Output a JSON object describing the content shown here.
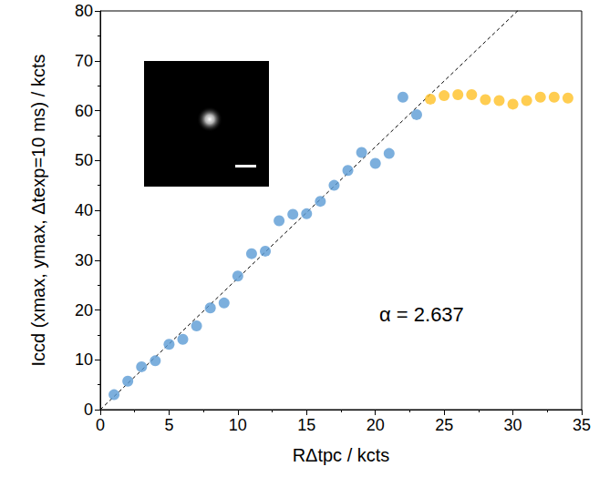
{
  "chart_data": {
    "type": "scatter",
    "x_label": "RΔtpc / kcts",
    "y_label": "Iccd (xmax, ymax, Δtexp=10 ms) / kcts",
    "xlim": [
      0,
      35
    ],
    "xticks": [
      0,
      5,
      10,
      15,
      20,
      25,
      30,
      35
    ],
    "ylim": [
      0,
      80
    ],
    "yticks": [
      0,
      10,
      20,
      30,
      40,
      50,
      60,
      70,
      80
    ],
    "grid": false,
    "marker": "circle",
    "series": [
      {
        "color": "#5B9BD5",
        "x": [
          1,
          2,
          3,
          4,
          5,
          6,
          7,
          8,
          9,
          10,
          11,
          12,
          13,
          14,
          15,
          16,
          17,
          18,
          19,
          20,
          21,
          22,
          23
        ],
        "values": [
          3.0,
          5.7,
          8.6,
          9.8,
          13.1,
          14.1,
          16.8,
          20.4,
          21.4,
          26.8,
          31.3,
          31.8,
          37.9,
          39.2,
          39.3,
          41.8,
          45.0,
          48.0,
          51.6,
          49.4,
          51.4,
          62.7,
          59.2
        ]
      },
      {
        "color": "#FFC125",
        "x": [
          24,
          25,
          26,
          27,
          28,
          29,
          30,
          31,
          32,
          33,
          34
        ],
        "values": [
          62.3,
          63.0,
          63.2,
          63.2,
          62.2,
          62.0,
          61.3,
          62.0,
          62.7,
          62.7,
          62.5
        ]
      }
    ],
    "fit": {
      "slope": 2.637,
      "line_style": "dashed",
      "color": "#000000"
    },
    "annotations": [
      "α = 2.637"
    ]
  }
}
